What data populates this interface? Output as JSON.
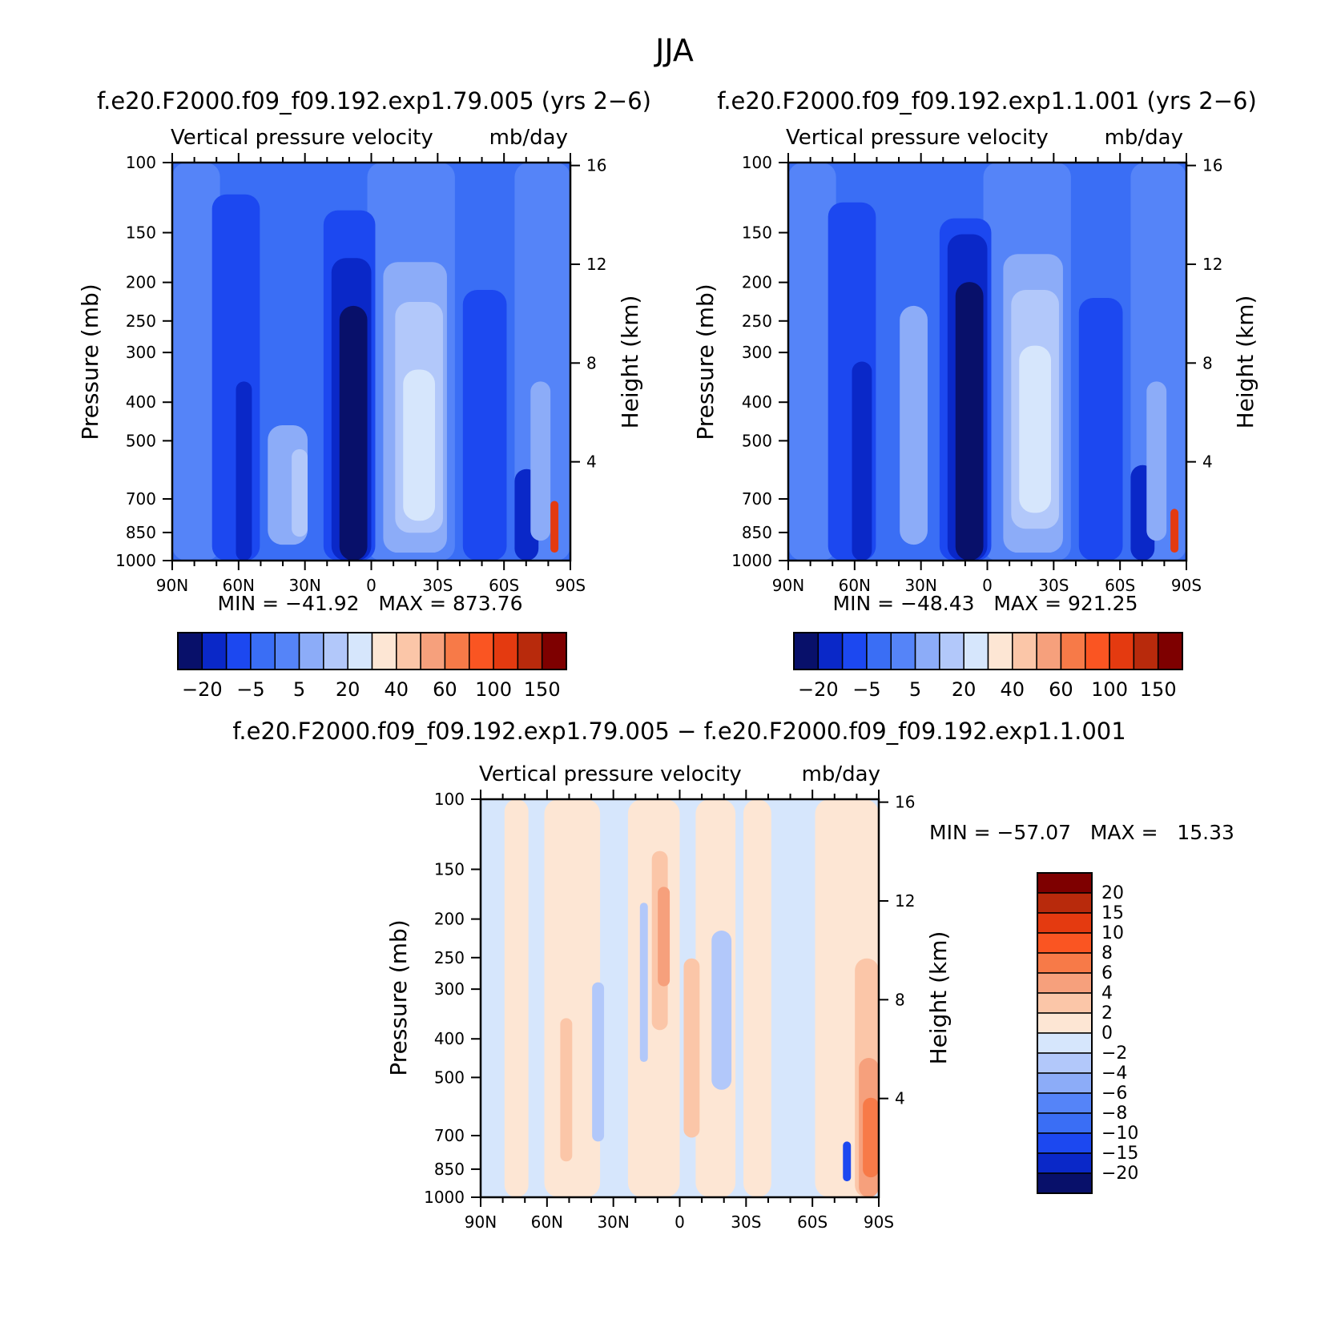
{
  "figure_title": "JJA",
  "colors": {
    "neg_3": "#08106a",
    "neg_2": "#0a28c8",
    "neg_1": "#1c48f0",
    "base": "#3a6ef5",
    "mid": "#5584f8",
    "lite1": "#8cacf8",
    "lite2": "#b2c8fa",
    "lite3": "#d6e6fc",
    "cream": "#fde6d4",
    "peach1": "#fbc6a8",
    "peach2": "#f6a07c",
    "orange1": "#f77a48",
    "orange2": "#fa5522",
    "red1": "#e43a10",
    "red2": "#b82a0c",
    "red3": "#7e0000"
  },
  "chart_data": [
    {
      "type": "heatmap",
      "title": "f.e20.F2000.f09_f09.192.exp1.79.005 (yrs 2−6)",
      "subtitle_left": "Vertical pressure velocity",
      "subtitle_right": "mb/day",
      "xlabel": "",
      "ylabel": "Pressure (mb)",
      "y2label": "Height (km)",
      "x_ticks": [
        "90N",
        "60N",
        "30N",
        "0",
        "30S",
        "60S",
        "90S"
      ],
      "x_tick_values": [
        90,
        60,
        30,
        0,
        -30,
        -60,
        -90
      ],
      "y_ticks": [
        "100",
        "150",
        "200",
        "250",
        "300",
        "400",
        "500",
        "700",
        "850",
        "1000"
      ],
      "y_tick_values": [
        100,
        150,
        200,
        250,
        300,
        400,
        500,
        700,
        850,
        1000
      ],
      "y_scale": "log",
      "ylim": [
        1000,
        100
      ],
      "xlim": [
        90,
        -90
      ],
      "y2_ticks": [
        "16",
        "12",
        "8",
        "4"
      ],
      "y2_tick_values": [
        16,
        12,
        8,
        4
      ],
      "stats": "MIN = −41.92   MAX = 873.76",
      "min": -41.92,
      "max": 873.76,
      "colorbar_labels": [
        "−20",
        "−5",
        "5",
        "20",
        "40",
        "60",
        "100",
        "150"
      ],
      "colorbar_levels": [
        -20,
        -5,
        5,
        20,
        40,
        60,
        100,
        150
      ],
      "colorbar_orientation": "horizontal"
    },
    {
      "type": "heatmap",
      "title": "f.e20.F2000.f09_f09.192.exp1.1.001 (yrs 2−6)",
      "subtitle_left": "Vertical pressure velocity",
      "subtitle_right": "mb/day",
      "xlabel": "",
      "ylabel": "Pressure (mb)",
      "y2label": "Height (km)",
      "x_ticks": [
        "90N",
        "60N",
        "30N",
        "0",
        "30S",
        "60S",
        "90S"
      ],
      "x_tick_values": [
        90,
        60,
        30,
        0,
        -30,
        -60,
        -90
      ],
      "y_ticks": [
        "100",
        "150",
        "200",
        "250",
        "300",
        "400",
        "500",
        "700",
        "850",
        "1000"
      ],
      "y_tick_values": [
        100,
        150,
        200,
        250,
        300,
        400,
        500,
        700,
        850,
        1000
      ],
      "y_scale": "log",
      "ylim": [
        1000,
        100
      ],
      "xlim": [
        90,
        -90
      ],
      "y2_ticks": [
        "16",
        "12",
        "8",
        "4"
      ],
      "y2_tick_values": [
        16,
        12,
        8,
        4
      ],
      "stats": "MIN = −48.43   MAX = 921.25",
      "min": -48.43,
      "max": 921.25,
      "colorbar_labels": [
        "−20",
        "−5",
        "5",
        "20",
        "40",
        "60",
        "100",
        "150"
      ],
      "colorbar_levels": [
        -20,
        -5,
        5,
        20,
        40,
        60,
        100,
        150
      ],
      "colorbar_orientation": "horizontal"
    },
    {
      "type": "heatmap",
      "title": "f.e20.F2000.f09_f09.192.exp1.79.005 − f.e20.F2000.f09_f09.192.exp1.1.001",
      "subtitle_left": "Vertical pressure velocity",
      "subtitle_right": "mb/day",
      "xlabel": "",
      "ylabel": "Pressure (mb)",
      "y2label": "Height (km)",
      "x_ticks": [
        "90N",
        "60N",
        "30N",
        "0",
        "30S",
        "60S",
        "90S"
      ],
      "x_tick_values": [
        90,
        60,
        30,
        0,
        -30,
        -60,
        -90
      ],
      "y_ticks": [
        "100",
        "150",
        "200",
        "250",
        "300",
        "400",
        "500",
        "700",
        "850",
        "1000"
      ],
      "y_tick_values": [
        100,
        150,
        200,
        250,
        300,
        400,
        500,
        700,
        850,
        1000
      ],
      "y_scale": "log",
      "ylim": [
        1000,
        100
      ],
      "xlim": [
        90,
        -90
      ],
      "y2_ticks": [
        "16",
        "12",
        "8",
        "4"
      ],
      "y2_tick_values": [
        16,
        12,
        8,
        4
      ],
      "stats": "MIN = −57.07   MAX =   15.33",
      "min": -57.07,
      "max": 15.33,
      "colorbar_labels": [
        "20",
        "15",
        "10",
        "8",
        "6",
        "4",
        "2",
        "0",
        "−2",
        "−4",
        "−6",
        "−8",
        "−10",
        "−15",
        "−20"
      ],
      "colorbar_levels": [
        20,
        15,
        10,
        8,
        6,
        4,
        2,
        0,
        -2,
        -4,
        -6,
        -8,
        -10,
        -15,
        -20
      ],
      "colorbar_orientation": "vertical"
    }
  ]
}
